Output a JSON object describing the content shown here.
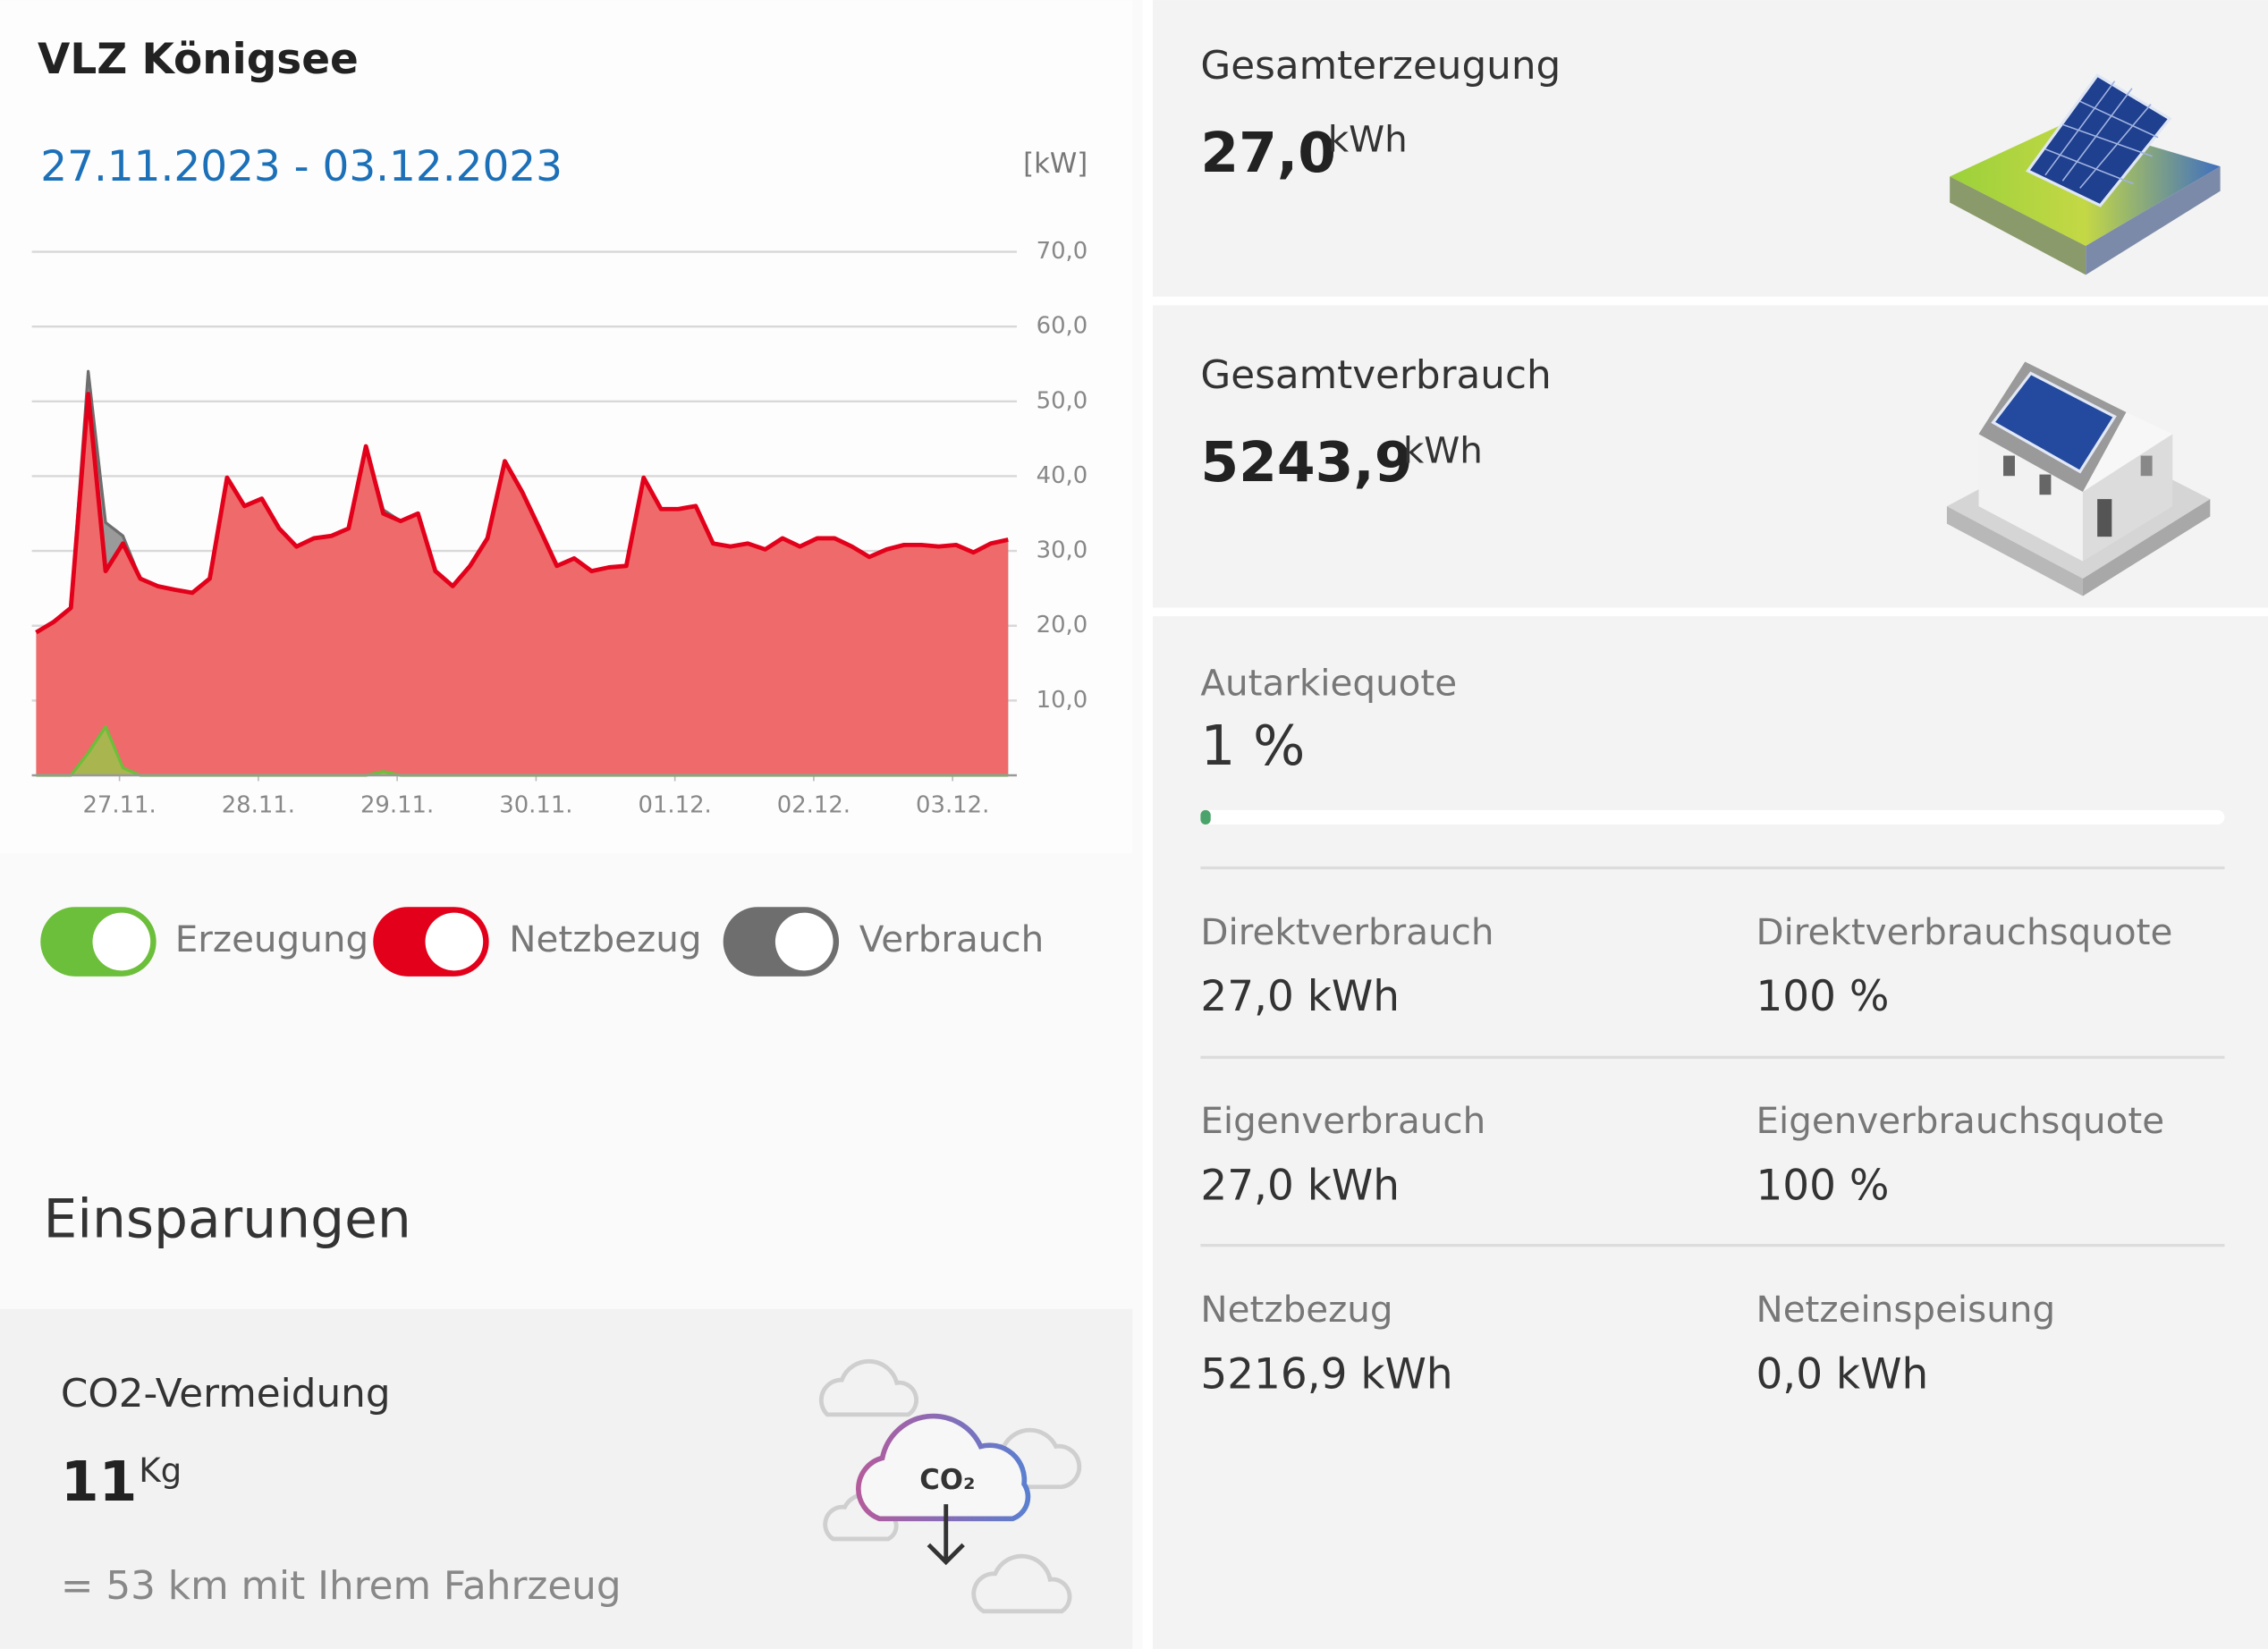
{
  "title": "VLZ Königsee",
  "date_range": "27.11.2023 - 03.12.2023",
  "chart_data": {
    "type": "area",
    "y_unit": "[kW]",
    "x": [
      0,
      0.125,
      0.25,
      0.375,
      0.5,
      0.625,
      0.75,
      0.875,
      1,
      1.125,
      1.25,
      1.375,
      1.5,
      1.625,
      1.75,
      1.875,
      2,
      2.125,
      2.25,
      2.375,
      2.5,
      2.625,
      2.75,
      2.875,
      3,
      3.125,
      3.25,
      3.375,
      3.5,
      3.625,
      3.75,
      3.875,
      4,
      4.125,
      4.25,
      4.375,
      4.5,
      4.625,
      4.75,
      4.875,
      5,
      5.125,
      5.25,
      5.375,
      5.5,
      5.625,
      5.75,
      5.875,
      6,
      6.125,
      6.25,
      6.375,
      6.5,
      6.625,
      6.75,
      6.875,
      7
    ],
    "xlim": [
      0,
      7
    ],
    "xticks": [
      {
        "value": 0.6,
        "label": "27.11."
      },
      {
        "value": 1.6,
        "label": "28.11."
      },
      {
        "value": 2.6,
        "label": "29.11."
      },
      {
        "value": 3.6,
        "label": "30.11."
      },
      {
        "value": 4.6,
        "label": "01.12."
      },
      {
        "value": 5.6,
        "label": "02.12."
      },
      {
        "value": 6.6,
        "label": "03.12."
      }
    ],
    "ylim": [
      0,
      70
    ],
    "yticks": [
      {
        "value": 10,
        "label": "10,0"
      },
      {
        "value": 20,
        "label": "20,0"
      },
      {
        "value": 30,
        "label": "30,0"
      },
      {
        "value": 40,
        "label": "40,0"
      },
      {
        "value": 50,
        "label": "50,0"
      },
      {
        "value": 60,
        "label": "60,0"
      },
      {
        "value": 70,
        "label": "70,0"
      }
    ],
    "grid": true,
    "series": [
      {
        "name": "Erzeugung",
        "color": "#6cbf3a",
        "values": [
          0,
          0,
          0,
          3,
          6.5,
          1,
          0,
          0,
          0,
          0,
          0,
          0,
          0,
          0,
          0,
          0,
          0,
          0,
          0,
          0,
          0.5,
          0,
          0,
          0,
          0,
          0,
          0,
          0,
          0,
          0,
          0,
          0,
          0,
          0,
          0,
          0,
          0,
          0,
          0,
          0,
          0,
          0,
          0,
          0,
          0,
          0,
          0,
          0,
          0,
          0,
          0,
          0,
          0,
          0,
          0,
          0,
          0
        ]
      },
      {
        "name": "Netzbezug",
        "color": "#e2001a",
        "values": [
          19.1,
          20.5,
          22.4,
          51,
          27.3,
          31,
          26.3,
          25.3,
          24.8,
          24.4,
          26.3,
          39.8,
          36,
          37,
          33,
          30.6,
          31.7,
          32,
          33,
          44,
          35,
          34,
          35,
          27.3,
          25.3,
          28,
          31.7,
          42,
          37.9,
          33,
          28,
          29,
          27.3,
          27.8,
          28,
          39.8,
          35.6,
          35.6,
          36,
          31,
          30.6,
          31,
          30.2,
          31.7,
          30.6,
          31.7,
          31.7,
          30.6,
          29.2,
          30.2,
          30.8,
          30.8,
          30.6,
          30.8,
          29.8,
          31,
          31.5
        ]
      },
      {
        "name": "Verbrauch",
        "color": "#6e6e6e",
        "values": [
          19.1,
          20.5,
          22.4,
          54,
          33.8,
          32,
          26.3,
          25.3,
          24.8,
          24.4,
          26.3,
          39.8,
          36,
          37,
          33,
          30.6,
          31.7,
          32,
          33,
          44,
          35.5,
          34,
          35,
          27.3,
          25.3,
          28,
          31.7,
          42,
          37.9,
          33,
          28,
          29,
          27.3,
          27.8,
          28,
          39.8,
          35.6,
          35.6,
          36,
          31,
          30.6,
          31,
          30.2,
          31.7,
          30.6,
          31.7,
          31.7,
          30.6,
          29.2,
          30.2,
          30.8,
          30.8,
          30.6,
          30.8,
          29.8,
          31,
          31.5
        ]
      }
    ]
  },
  "savings": {
    "heading": "Einsparungen",
    "title": "CO2-Vermeidung",
    "value": "11",
    "unit": "Kg",
    "equivalent": "= 53 km mit Ihrem Fahrzeug",
    "icon_text": "CO₂"
  },
  "summary": {
    "generation": {
      "label": "Gesamterzeugung",
      "value": "27,0",
      "unit": "kWh"
    },
    "consumption": {
      "label": "Gesamtverbrauch",
      "value": "5243,9",
      "unit": "kWh"
    },
    "autarky": {
      "label": "Autarkiequote",
      "value": "1 %"
    },
    "metrics": [
      {
        "label": "Direktverbrauch",
        "value": "27,0 kWh"
      },
      {
        "label": "Direktverbrauchsquote",
        "value": "100 %"
      },
      {
        "label": "Eigenverbrauch",
        "value": "27,0 kWh"
      },
      {
        "label": "Eigenverbrauchsquote",
        "value": "100 %"
      },
      {
        "label": "Netzbezug",
        "value": "5216,9 kWh"
      },
      {
        "label": "Netzeinspeisung",
        "value": "0,0 kWh"
      }
    ]
  }
}
